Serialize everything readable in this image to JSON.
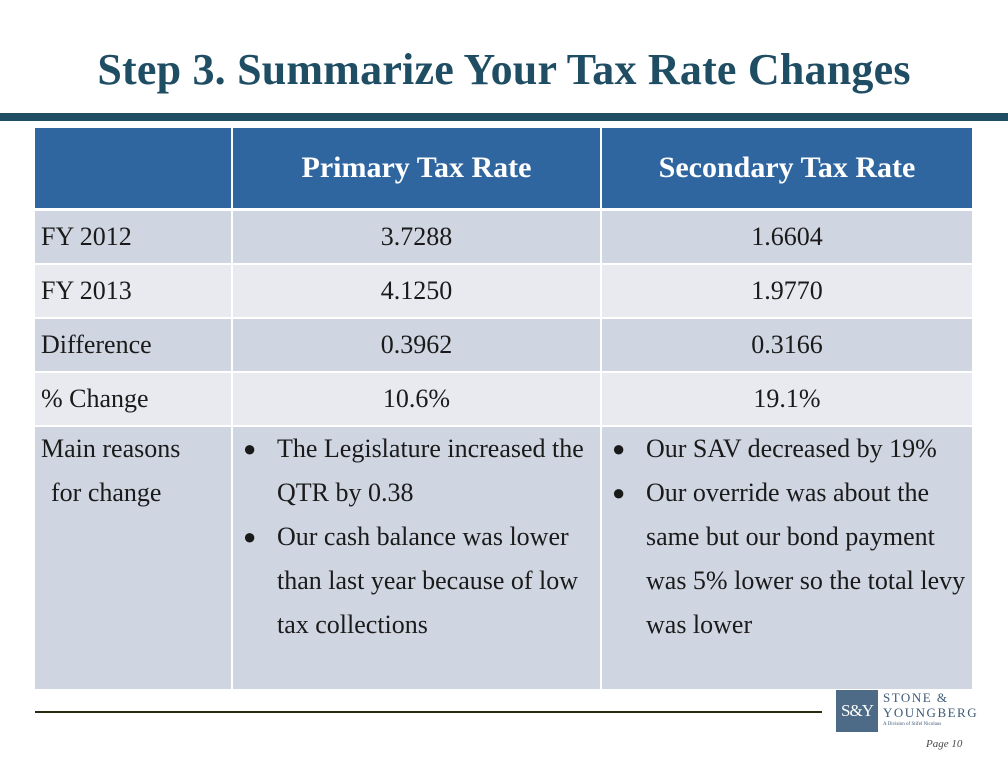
{
  "slide": {
    "title": "Step 3. Summarize Your Tax Rate Changes",
    "page_number": "Page 10"
  },
  "table": {
    "headers": [
      "",
      "Primary Tax Rate",
      "Secondary Tax Rate"
    ],
    "rows": [
      {
        "label": "FY 2012",
        "primary": "3.7288",
        "secondary": "1.6604"
      },
      {
        "label": "FY 2013",
        "primary": "4.1250",
        "secondary": "1.9770"
      },
      {
        "label": "Difference",
        "primary": "0.3962",
        "secondary": "0.3166"
      },
      {
        "label": "% Change",
        "primary": "10.6%",
        "secondary": "19.1%"
      }
    ],
    "reasons": {
      "label_line1": "Main reasons",
      "label_line2": "for change",
      "primary": [
        "The Legislature increased the QTR by 0.38",
        "Our cash balance was lower than last year because of low tax collections"
      ],
      "secondary": [
        "Our SAV decreased by 19%",
        "Our override was about the same but our bond payment was 5% lower so the total levy was lower"
      ]
    }
  },
  "logo": {
    "mark": "S&Y",
    "name_line1": "Stone &",
    "name_line2": "Youngberg",
    "subtitle": "A Division of Stifel Nicolaus"
  },
  "colors": {
    "title": "#1f4d63",
    "header_fill": "#2f66a0",
    "row_dark": "#cfd5e1",
    "row_light": "#e8eaf0"
  }
}
